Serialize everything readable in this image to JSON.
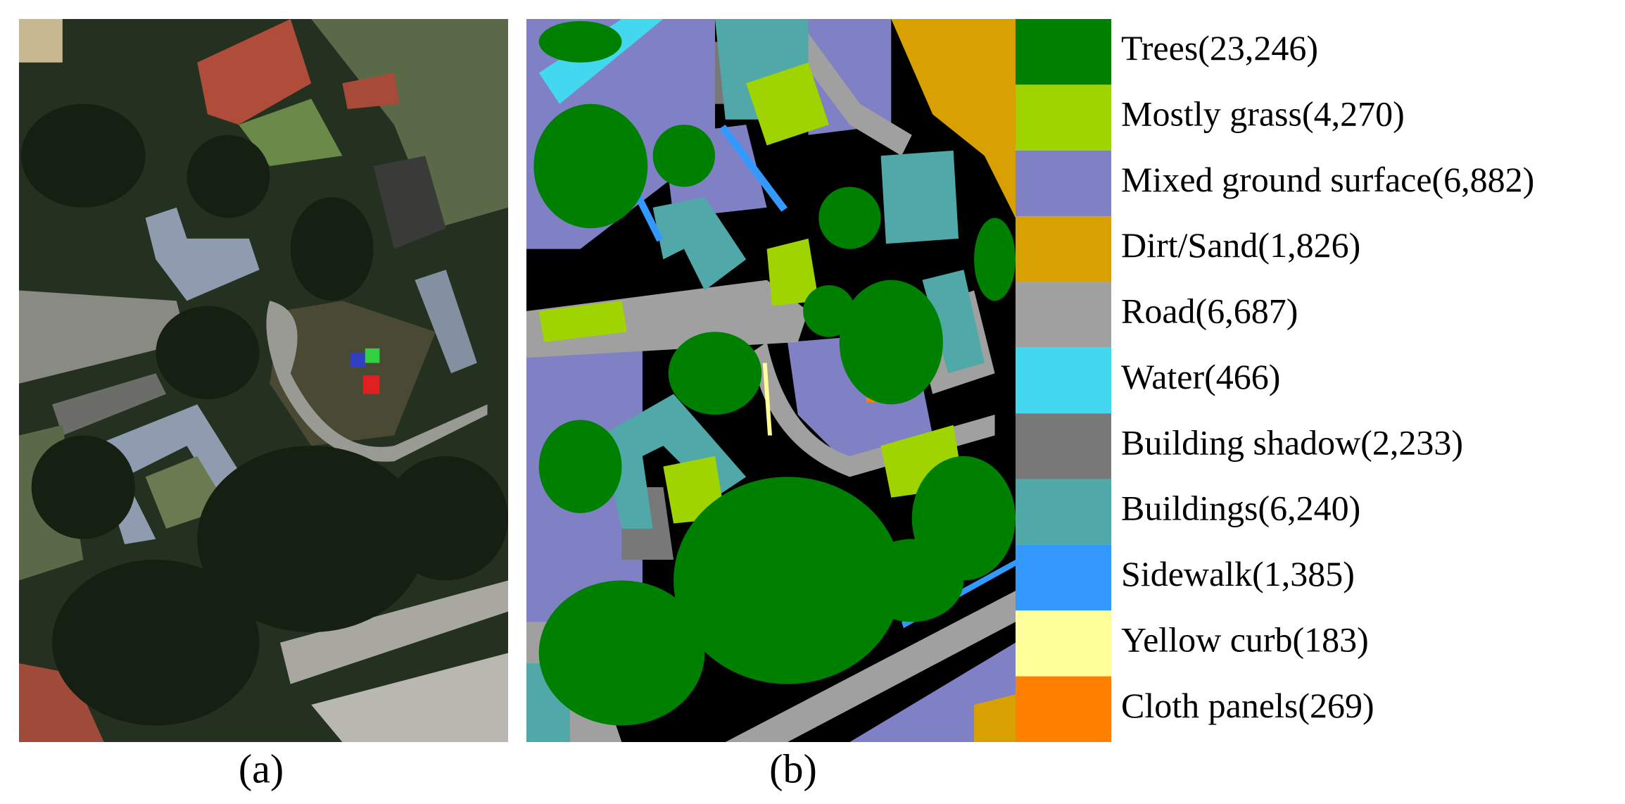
{
  "panels": [
    {
      "caption": "(a)"
    },
    {
      "caption": "(b)"
    }
  ],
  "legend": {
    "items": [
      {
        "label": "Trees(23,246)",
        "color": "#008000"
      },
      {
        "label": "Mostly grass(4,270)",
        "color": "#a0d400"
      },
      {
        "label": "Mixed ground surface(6,882)",
        "color": "#8080c4"
      },
      {
        "label": "Dirt/Sand(1,826)",
        "color": "#d8a000"
      },
      {
        "label": "Road(6,687)",
        "color": "#a0a0a0"
      },
      {
        "label": "Water(466)",
        "color": "#44d8f0"
      },
      {
        "label": "Building shadow(2,233)",
        "color": "#787878"
      },
      {
        "label": "Buildings(6,240)",
        "color": "#50a8a8"
      },
      {
        "label": "Sidewalk(1,385)",
        "color": "#3399ff"
      },
      {
        "label": "Yellow curb(183)",
        "color": "#ffff99"
      },
      {
        "label": "Cloth panels(269)",
        "color": "#ff8000"
      }
    ]
  }
}
